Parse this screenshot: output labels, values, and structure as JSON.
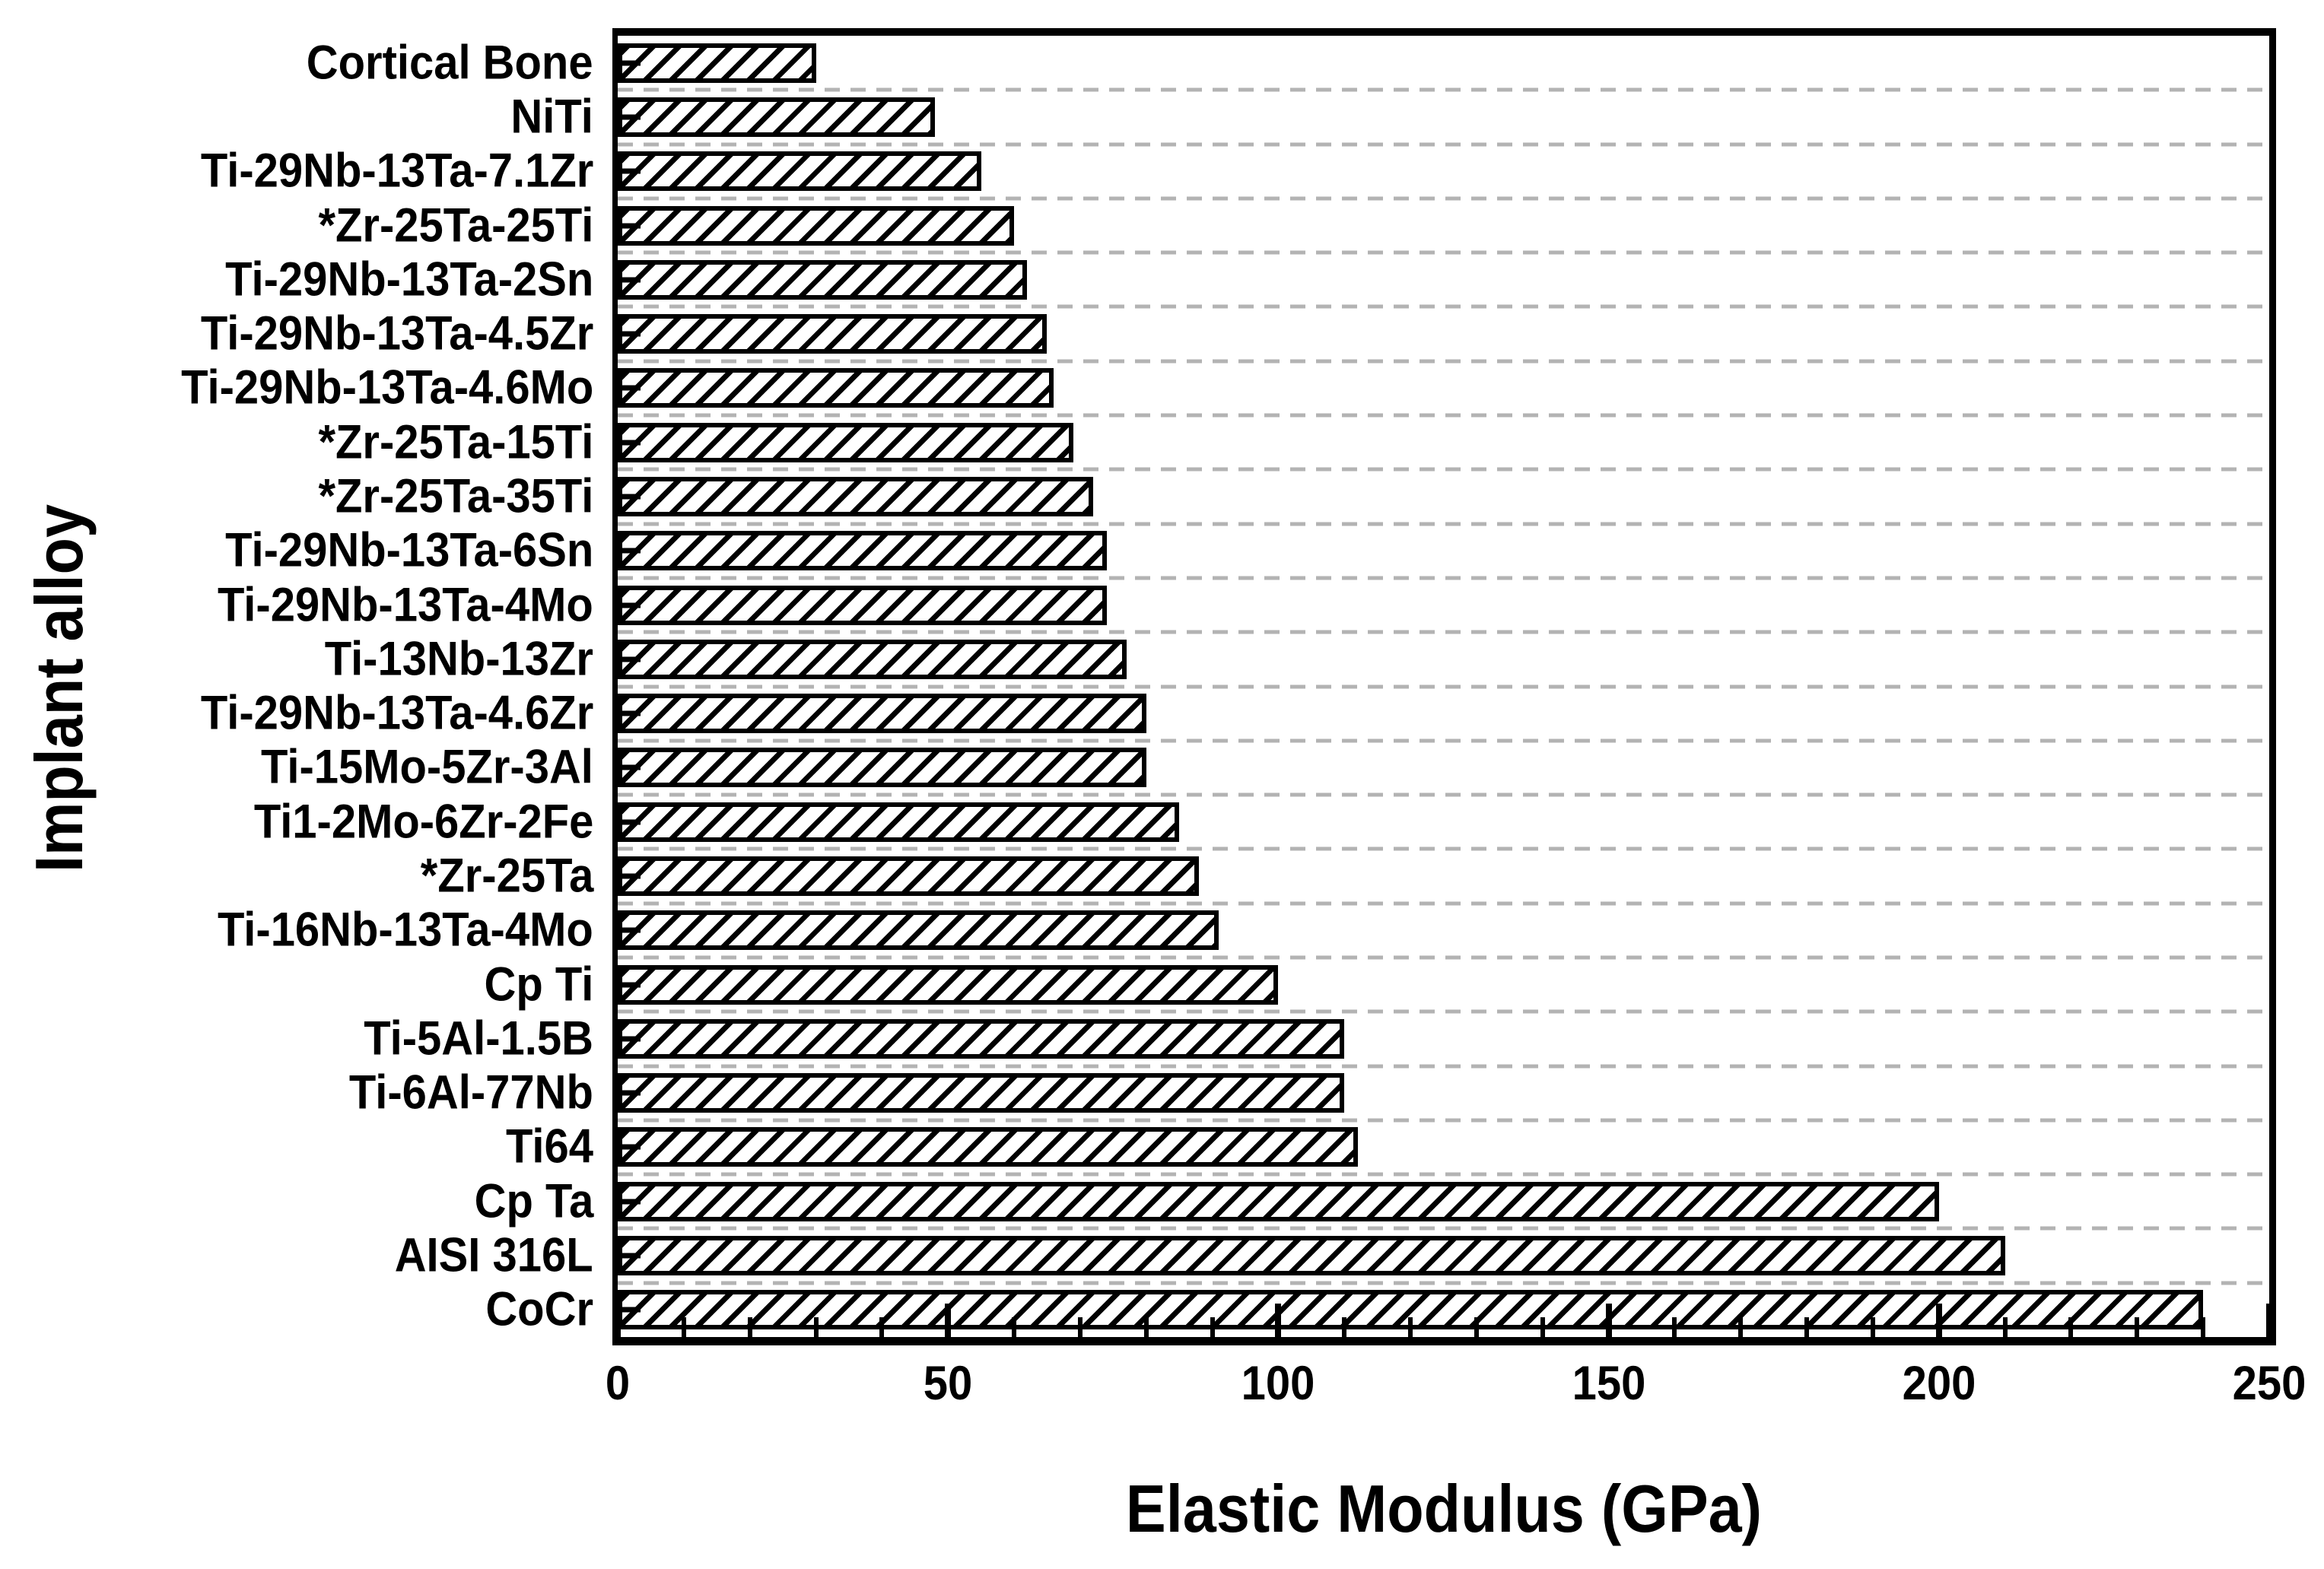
{
  "chart_data": {
    "type": "bar",
    "orientation": "horizontal",
    "title": "",
    "xlabel": "Elastic Modulus (GPa)",
    "ylabel": "Implant alloy",
    "xlim": [
      0,
      250
    ],
    "xticks": [
      "0",
      "50",
      "100",
      "150",
      "200",
      "250"
    ],
    "xtick_values": [
      0,
      50,
      100,
      150,
      200,
      250
    ],
    "minor_tick_step": 10,
    "grid": "horizontal dashed gridlines between category rows",
    "legend": "none",
    "bar_style": "white fill, black diagonal '/' hatch, black border",
    "categories": [
      "Cortical Bone",
      "NiTi",
      "Ti-29Nb-13Ta-7.1Zr",
      "*Zr-25Ta-25Ti",
      "Ti-29Nb-13Ta-2Sn",
      "Ti-29Nb-13Ta-4.5Zr",
      "Ti-29Nb-13Ta-4.6Mo",
      "*Zr-25Ta-15Ti",
      "*Zr-25Ta-35Ti",
      "Ti-29Nb-13Ta-6Sn",
      "Ti-29Nb-13Ta-4Mo",
      "Ti-13Nb-13Zr",
      "Ti-29Nb-13Ta-4.6Zr",
      "Ti-15Mo-5Zr-3Al",
      "Ti1-2Mo-6Zr-2Fe",
      "*Zr-25Ta",
      "Ti-16Nb-13Ta-4Mo",
      "Cp Ti",
      "Ti-5Al-1.5B",
      "Ti-6Al-77Nb",
      "Ti64",
      "Cp Ta",
      "AISI 316L",
      "CoCr"
    ],
    "values": [
      30,
      48,
      55,
      60,
      62,
      65,
      66,
      69,
      72,
      74,
      74,
      77,
      80,
      80,
      85,
      88,
      91,
      100,
      110,
      110,
      112,
      200,
      210,
      240
    ]
  },
  "colors": {
    "foreground": "#000000",
    "background": "#ffffff",
    "gridline": "#b3b3b3"
  }
}
